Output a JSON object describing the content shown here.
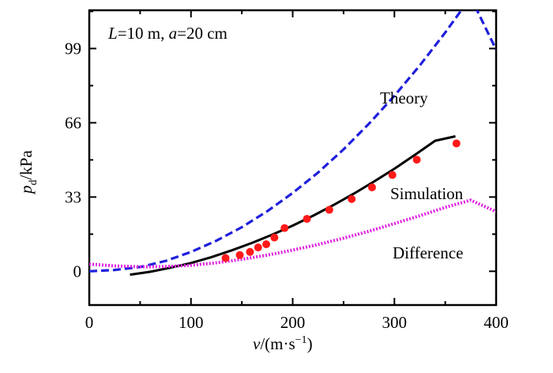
{
  "chart_data": {
    "type": "line",
    "title_annotation": {
      "L": "L",
      "L_value": "=10 m, ",
      "a": "a",
      "a_value": "=20 cm"
    },
    "xlabel": {
      "var": "v",
      "unit": "/(m·s",
      "exp": "−1",
      "close": ")"
    },
    "ylabel": {
      "var": "p",
      "sub": "d",
      "unit": "/kPa"
    },
    "xlim": [
      0,
      400
    ],
    "ylim": [
      -15,
      116
    ],
    "xticks": [
      0,
      100,
      200,
      300,
      400
    ],
    "yticks": [
      0,
      33,
      66,
      99
    ],
    "grid": false,
    "series": [
      {
        "name": "Theory",
        "style": "dashed",
        "color": "#1f1fdc",
        "x": [
          0,
          25,
          50,
          75,
          100,
          125,
          150,
          175,
          200,
          225,
          250,
          275,
          300,
          325,
          350,
          375,
          400
        ],
        "y": [
          0,
          0.6,
          1.9,
          4.6,
          8.6,
          13.6,
          19.6,
          26.7,
          34.8,
          43.9,
          54.2,
          65.6,
          78.0,
          91.5,
          106.1,
          121.8,
          98.5
        ]
      },
      {
        "name": "Simulation",
        "style": "solid",
        "color": "#000000",
        "x": [
          40,
          60,
          80,
          100,
          120,
          140,
          160,
          180,
          200,
          220,
          240,
          260,
          280,
          300,
          320,
          340,
          360
        ],
        "y": [
          -1.5,
          -0.2,
          1.6,
          3.7,
          6.3,
          9.3,
          12.6,
          16.3,
          20.3,
          24.7,
          29.4,
          34.5,
          39.9,
          45.6,
          51.7,
          58.0,
          60.0
        ]
      },
      {
        "name": "Difference",
        "style": "dotted",
        "color": "#e020e0",
        "x": [
          0,
          25,
          50,
          75,
          100,
          125,
          150,
          175,
          200,
          225,
          250,
          275,
          300,
          325,
          350,
          375,
          400
        ],
        "y": [
          3.2,
          2.4,
          2.0,
          2.1,
          2.7,
          3.8,
          5.3,
          7.2,
          9.4,
          11.9,
          14.7,
          17.8,
          21.2,
          24.7,
          28.4,
          31.6,
          26.5
        ]
      },
      {
        "name": "Simulation points",
        "style": "markers",
        "color": "#ff1a1a",
        "x": [
          134,
          148,
          158,
          166,
          174,
          182,
          192,
          214,
          236,
          258,
          278,
          298,
          322,
          361
        ],
        "y": [
          5.9,
          7.2,
          8.6,
          10.6,
          12.0,
          15.0,
          19.2,
          23.3,
          27.3,
          32.1,
          37.3,
          42.8,
          49.6,
          56.8
        ]
      }
    ],
    "labels": {
      "theory": "Theory",
      "simulation": "Simulation",
      "difference": "Difference"
    }
  }
}
